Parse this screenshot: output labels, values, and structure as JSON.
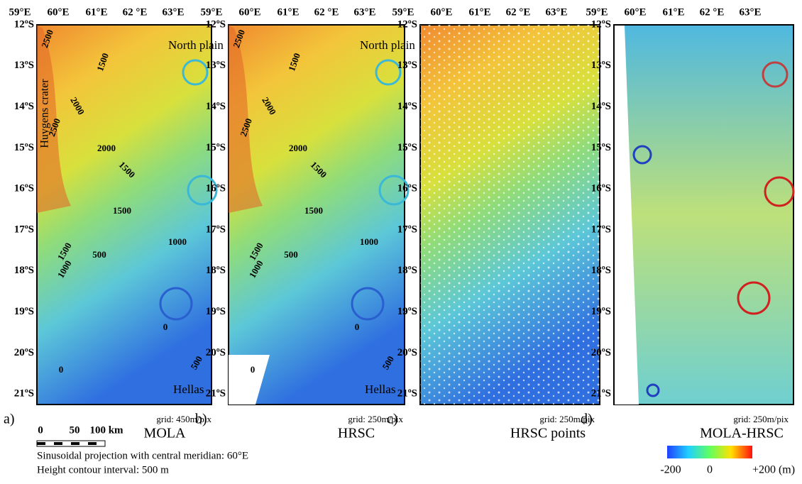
{
  "longitude_labels": [
    "59°E",
    "60°E",
    "61°E",
    "62 °E",
    "63°E"
  ],
  "latitude_labels": [
    "12ºS",
    "13ºS",
    "14ºS",
    "15ºS",
    "16ºS",
    "17ºS",
    "18ºS",
    "19ºS",
    "20ºS",
    "21ºS"
  ],
  "panels": [
    {
      "label": "a)",
      "title": "MOLA",
      "grid": "grid: 450m/pix",
      "annotations": {
        "north": "North plain",
        "crater": "Huygens crater",
        "south": "Hellas"
      },
      "contours": [
        "2500",
        "2000",
        "1500",
        "2500",
        "2000",
        "1500",
        "1500",
        "1000",
        "1500",
        "500",
        "1000",
        "0",
        "0",
        "500"
      ]
    },
    {
      "label": "b)",
      "title": "HRSC",
      "grid": "grid: 250m/pix",
      "annotations": {
        "north": "North plain",
        "south": "Hellas"
      },
      "contours": [
        "2500",
        "2000",
        "1500",
        "2500",
        "2000",
        "1500",
        "1500",
        "1000",
        "1500",
        "500",
        "1000",
        "0",
        "0",
        "500"
      ]
    },
    {
      "label": "c)",
      "title": "HRSC points",
      "grid": "grid: 250m/pix"
    },
    {
      "label": "d)",
      "title": "MOLA-HRSC",
      "grid": "grid: 250m/pix"
    }
  ],
  "scale_bar": [
    "0",
    "50",
    "100 km"
  ],
  "notes": [
    "Sinusoidal projection with central meridian: 60°E",
    "Height contour interval: 500 m"
  ],
  "colorbar": [
    "-200",
    "0",
    "+200 (m)"
  ]
}
